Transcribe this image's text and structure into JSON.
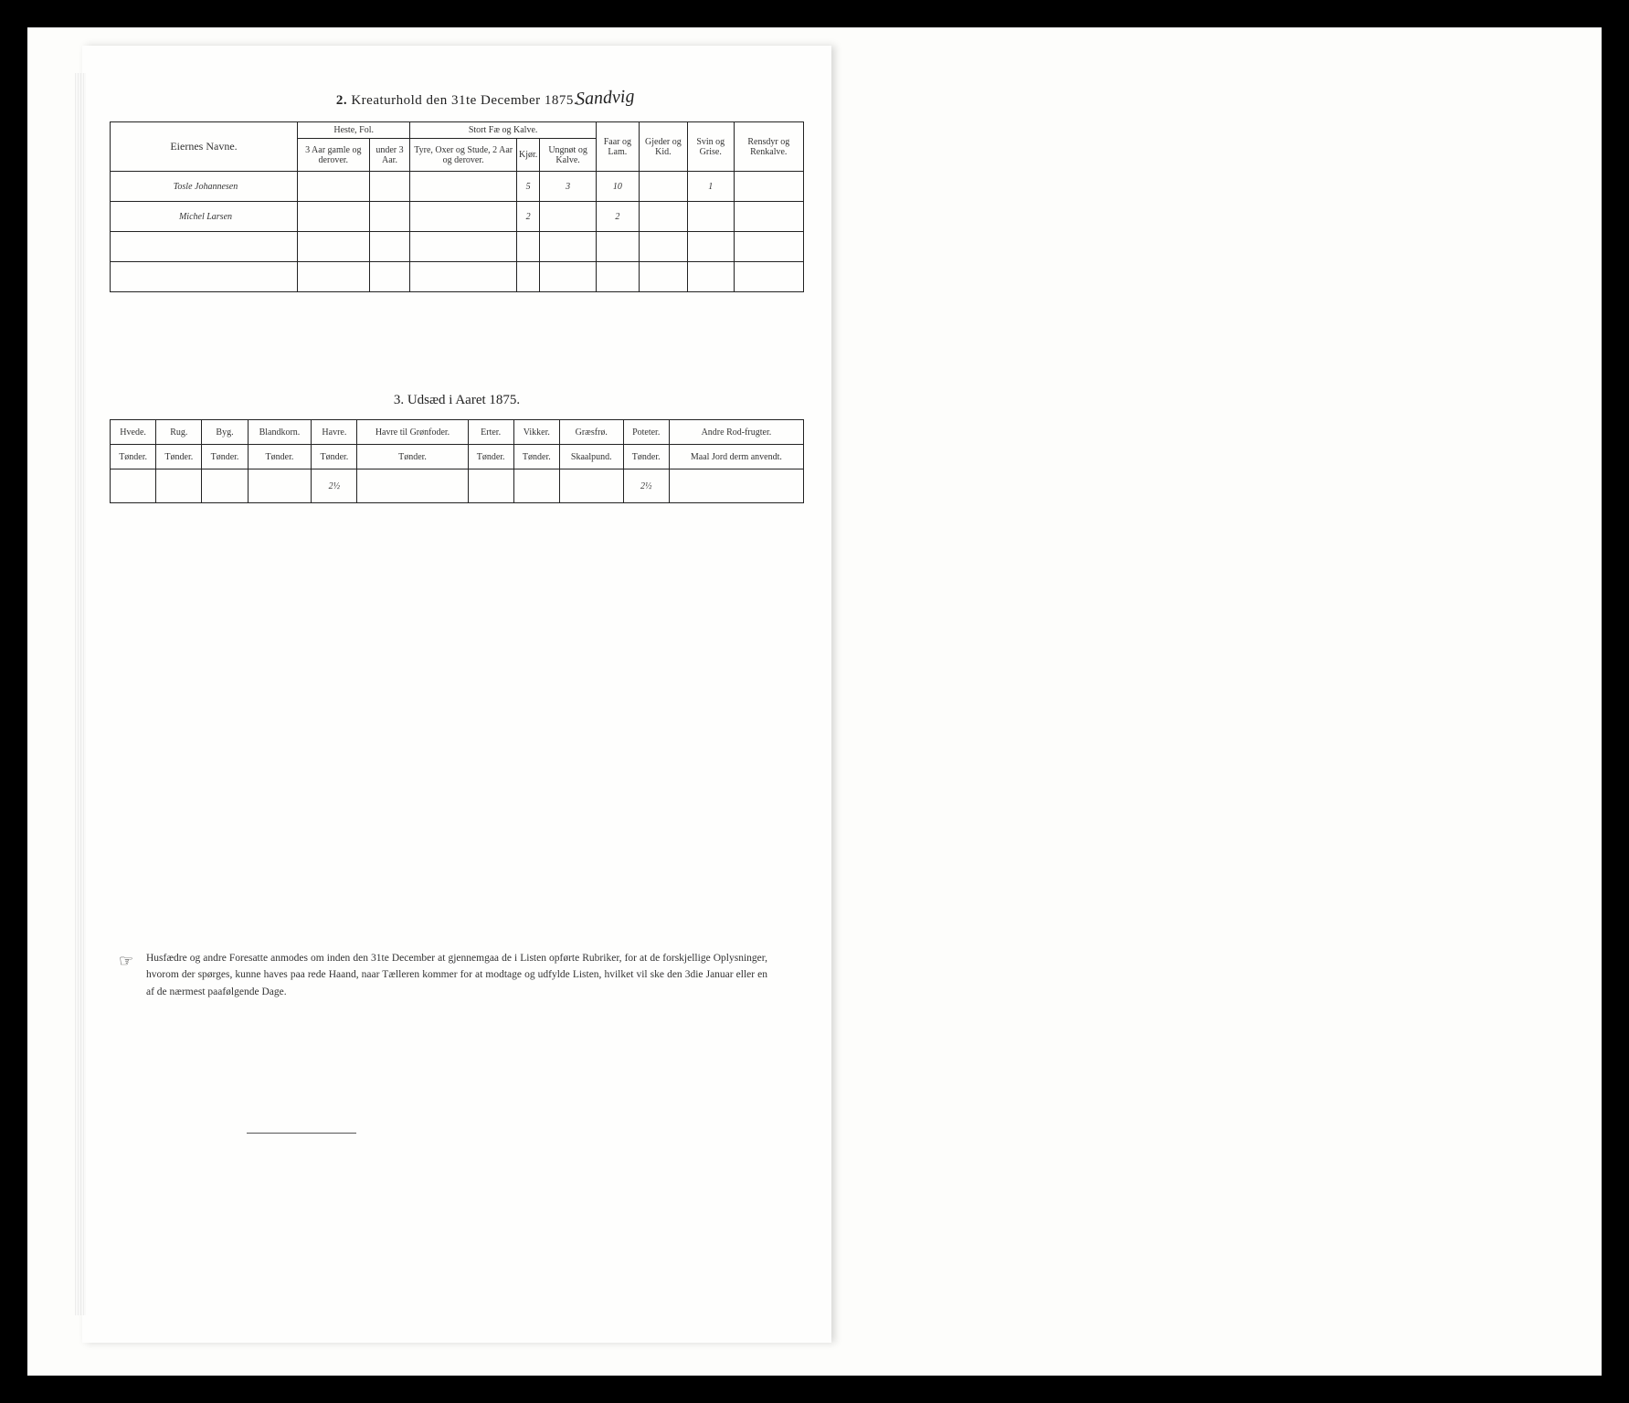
{
  "annotation": "Sandvig",
  "section2": {
    "title_num": "2.",
    "title_text": "Kreaturhold den 31te December 1875.",
    "col_name": "Eiernes Navne.",
    "grp_heste": "Heste, Fol.",
    "grp_stort": "Stort Fæ og Kalve.",
    "col_faar": "Faar og Lam.",
    "col_gjeder": "Gjeder og Kid.",
    "col_svin": "Svin og Grise.",
    "col_rensdyr": "Rensdyr og Renkalve.",
    "sub_h1": "3 Aar gamle og derover.",
    "sub_h2": "under 3 Aar.",
    "sub_s1": "Tyre, Oxer og Stude, 2 Aar og derover.",
    "sub_s2": "Kjør.",
    "sub_s3": "Ungnøt og Kalve.",
    "rows": [
      {
        "name": "Tosle Johannesen",
        "c4": "5",
        "c5": "3",
        "c6": "10",
        "c8": "1"
      },
      {
        "name": "Michel Larsen",
        "c4": "2",
        "c6": "2"
      }
    ]
  },
  "section3": {
    "title_num": "3.",
    "title_text": "Udsæd i Aaret 1875.",
    "cols": [
      "Hvede.",
      "Rug.",
      "Byg.",
      "Blandkorn.",
      "Havre.",
      "Havre til Grønfoder.",
      "Erter.",
      "Vikker.",
      "Græsfrø.",
      "Poteter.",
      "Andre Rod-frugter."
    ],
    "units": [
      "Tønder.",
      "Tønder.",
      "Tønder.",
      "Tønder.",
      "Tønder.",
      "Tønder.",
      "Tønder.",
      "Tønder.",
      "Skaalpund.",
      "Tønder.",
      "Maal Jord derm anvendt."
    ],
    "row": {
      "c4": "2½",
      "c9": "2½"
    }
  },
  "note": "Husfædre og andre Foresatte anmodes om inden den 31te December at gjennemgaa de i Listen opførte Rubriker, for at de forskjellige Oplysninger, hvorom der spørges, kunne haves paa rede Haand, naar Tælleren kommer for at modtage og udfylde Listen, hvilket vil ske den 3die Januar eller en af de nærmest paafølgende Dage.",
  "pointer_glyph": "☞"
}
